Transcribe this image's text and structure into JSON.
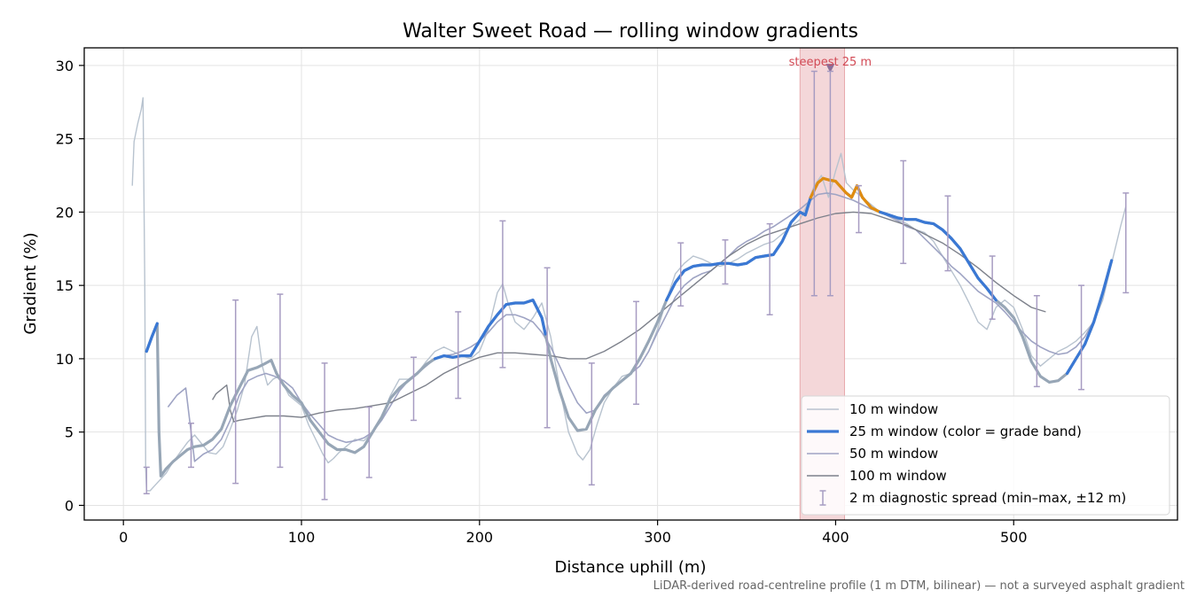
{
  "chart_data": {
    "type": "line",
    "title": "Walter Sweet Road — rolling window gradients",
    "xlabel": "Distance uphill (m)",
    "ylabel": "Gradient (%)",
    "xlim": [
      -22,
      592
    ],
    "ylim": [
      -1.0,
      31.2
    ],
    "x_ticks": [
      0,
      100,
      200,
      300,
      400,
      500
    ],
    "y_ticks": [
      0,
      5,
      10,
      15,
      20,
      25,
      30
    ],
    "grid": true,
    "legend_position": "lower right",
    "footnote": "LiDAR-derived road-centreline profile (1 m DTM, bilinear) — not a surveyed asphalt gradient",
    "highlight": {
      "x_start": 380,
      "x_end": 405,
      "label": "steepest 25 m",
      "marker_x": 397,
      "marker_y": 29.8
    },
    "colors": {
      "w10": "#b8c3cf",
      "w25_base": "#97a6b6",
      "w25_blue": "#3a78d4",
      "w25_orange": "#e08c10",
      "w50": "#9fa4c4",
      "w100": "#7d818b",
      "spread": "#a79cc2",
      "highlight_fill": "#f4d7d9",
      "highlight_edge": "#e7a9ad",
      "annotation": "#d24a55",
      "marker": "#8a6f99"
    },
    "legend": [
      {
        "key": "w10",
        "label": "10 m window"
      },
      {
        "key": "w25",
        "label": "25 m window (color = grade band)"
      },
      {
        "key": "w50",
        "label": "50 m window"
      },
      {
        "key": "w100",
        "label": "100 m window"
      },
      {
        "key": "spread",
        "label": "2 m diagnostic spread (min–max, ±12 m)"
      }
    ],
    "series": [
      {
        "name": "10 m window",
        "key": "w10",
        "x": [
          5,
          6,
          8,
          10,
          11,
          12,
          12.5,
          13,
          15,
          18,
          21,
          24,
          27,
          30,
          33,
          36,
          40,
          44,
          48,
          52,
          56,
          60,
          64,
          68,
          72,
          75,
          78,
          81,
          84,
          87,
          90,
          93,
          96,
          100,
          104,
          108,
          112,
          115,
          118,
          121,
          125,
          130,
          135,
          140,
          145,
          150,
          155,
          160,
          165,
          170,
          175,
          180,
          185,
          190,
          195,
          200,
          205,
          210,
          213,
          216,
          220,
          225,
          230,
          235,
          240,
          245,
          250,
          255,
          258,
          262,
          266,
          270,
          275,
          280,
          285,
          290,
          295,
          300,
          305,
          310,
          315,
          320,
          325,
          330,
          335,
          340,
          345,
          350,
          355,
          360,
          365,
          370,
          375,
          380,
          384,
          388,
          392,
          396,
          400,
          403,
          406,
          410,
          415,
          420,
          425,
          430,
          435,
          440,
          445,
          450,
          455,
          460,
          465,
          470,
          475,
          480,
          485,
          490,
          495,
          500,
          505,
          510,
          515,
          520,
          525,
          530,
          535,
          540,
          545,
          550,
          555,
          560,
          563
        ],
        "y": [
          21.8,
          24.8,
          26.0,
          27.0,
          27.8,
          15.0,
          2.5,
          1.0,
          1.0,
          1.4,
          1.8,
          2.2,
          2.8,
          3.3,
          3.8,
          4.3,
          4.8,
          4.2,
          3.6,
          3.5,
          4.0,
          5.2,
          6.5,
          8.2,
          11.5,
          12.2,
          9.5,
          8.2,
          8.6,
          8.8,
          8.2,
          7.5,
          7.2,
          6.8,
          5.5,
          4.5,
          3.5,
          2.9,
          3.2,
          3.6,
          4.0,
          4.5,
          4.4,
          5.0,
          6.0,
          7.5,
          8.6,
          8.6,
          9.0,
          9.8,
          10.5,
          10.8,
          10.5,
          10.2,
          10.0,
          10.5,
          12.0,
          14.5,
          15.1,
          13.8,
          12.5,
          12.0,
          12.8,
          13.8,
          11.5,
          8.0,
          5.0,
          3.5,
          3.1,
          3.8,
          5.5,
          7.0,
          8.0,
          8.8,
          9.0,
          9.5,
          10.5,
          12.0,
          14.0,
          15.8,
          16.5,
          17.0,
          16.8,
          16.5,
          16.3,
          16.5,
          16.8,
          17.2,
          17.5,
          17.8,
          18.0,
          18.5,
          19.0,
          19.5,
          20.5,
          21.8,
          22.5,
          21.0,
          22.8,
          24.0,
          22.0,
          21.5,
          21.0,
          20.5,
          20.0,
          19.8,
          19.5,
          19.2,
          18.8,
          18.6,
          18.0,
          17.0,
          16.0,
          15.0,
          13.8,
          12.5,
          12.0,
          13.5,
          14.0,
          13.5,
          12.0,
          10.2,
          9.5,
          10.0,
          10.5,
          10.8,
          11.2,
          11.8,
          12.5,
          14.0,
          16.5,
          19.0,
          20.4
        ]
      },
      {
        "name": "25 m window (color = grade band)",
        "key": "w25",
        "x": [
          13,
          16,
          19,
          20,
          21,
          24,
          28,
          32,
          36,
          40,
          45,
          50,
          55,
          60,
          65,
          70,
          75,
          80,
          83,
          86,
          90,
          95,
          100,
          105,
          110,
          115,
          120,
          125,
          130,
          135,
          140,
          145,
          150,
          155,
          160,
          165,
          170,
          175,
          180,
          185,
          190,
          195,
          200,
          205,
          210,
          215,
          220,
          225,
          230,
          235,
          240,
          245,
          250,
          255,
          260,
          265,
          270,
          275,
          280,
          285,
          290,
          295,
          300,
          305,
          310,
          315,
          320,
          325,
          330,
          335,
          340,
          345,
          350,
          355,
          360,
          365,
          370,
          375,
          380,
          383,
          386,
          390,
          393,
          396,
          400,
          403,
          406,
          409,
          412,
          415,
          420,
          425,
          430,
          435,
          440,
          445,
          450,
          455,
          460,
          465,
          470,
          475,
          480,
          485,
          490,
          495,
          500,
          505,
          510,
          515,
          520,
          525,
          530,
          535,
          540,
          545,
          550,
          555
        ],
        "y": [
          10.5,
          11.5,
          12.4,
          5.0,
          2.0,
          2.5,
          3.0,
          3.4,
          3.8,
          4.0,
          4.1,
          4.5,
          5.2,
          6.8,
          8.0,
          9.2,
          9.4,
          9.7,
          9.9,
          9.0,
          8.2,
          7.5,
          7.0,
          5.8,
          5.0,
          4.2,
          3.8,
          3.8,
          3.6,
          4.0,
          5.0,
          6.0,
          7.3,
          8.0,
          8.5,
          9.0,
          9.6,
          10.0,
          10.2,
          10.1,
          10.2,
          10.2,
          11.2,
          12.2,
          13.0,
          13.7,
          13.8,
          13.8,
          14.0,
          12.8,
          10.0,
          7.8,
          6.0,
          5.1,
          5.2,
          6.5,
          7.4,
          8.0,
          8.5,
          9.0,
          10.0,
          11.2,
          12.5,
          14.0,
          15.2,
          16.0,
          16.3,
          16.4,
          16.4,
          16.5,
          16.5,
          16.4,
          16.5,
          16.9,
          17.0,
          17.1,
          18.0,
          19.3,
          20.0,
          19.8,
          21.0,
          22.0,
          22.3,
          22.2,
          22.1,
          21.7,
          21.3,
          21.0,
          21.8,
          21.0,
          20.3,
          20.0,
          19.8,
          19.6,
          19.5,
          19.5,
          19.3,
          19.2,
          18.8,
          18.2,
          17.5,
          16.5,
          15.5,
          14.8,
          14.0,
          13.5,
          12.8,
          11.5,
          9.8,
          8.8,
          8.4,
          8.5,
          9.0,
          10.0,
          11.0,
          12.5,
          14.5,
          16.7
        ],
        "segments": [
          {
            "band": "blue",
            "x_start": 12,
            "x_end": 19
          },
          {
            "band": "blue",
            "x_start": 175,
            "x_end": 200
          },
          {
            "band": "blue",
            "x_start": 200,
            "x_end": 237
          },
          {
            "band": "blue",
            "x_start": 305,
            "x_end": 386
          },
          {
            "band": "orange",
            "x_start": 386,
            "x_end": 425
          },
          {
            "band": "blue",
            "x_start": 425,
            "x_end": 490
          },
          {
            "band": "blue",
            "x_start": 530,
            "x_end": 555
          }
        ]
      },
      {
        "name": "50 m window",
        "key": "w50",
        "x": [
          25,
          30,
          35,
          40,
          45,
          50,
          55,
          60,
          65,
          70,
          75,
          80,
          85,
          90,
          95,
          100,
          105,
          110,
          115,
          120,
          125,
          130,
          135,
          140,
          145,
          150,
          155,
          160,
          165,
          170,
          175,
          180,
          185,
          190,
          195,
          200,
          205,
          210,
          215,
          220,
          225,
          230,
          235,
          240,
          245,
          250,
          255,
          260,
          265,
          270,
          275,
          280,
          285,
          290,
          295,
          300,
          305,
          310,
          315,
          320,
          325,
          330,
          335,
          340,
          345,
          350,
          355,
          360,
          365,
          370,
          375,
          380,
          385,
          390,
          395,
          400,
          405,
          410,
          415,
          420,
          425,
          430,
          435,
          440,
          445,
          450,
          455,
          460,
          465,
          470,
          475,
          480,
          485,
          490,
          495,
          500,
          505,
          510,
          515,
          520,
          525,
          530,
          535,
          540,
          545
        ],
        "y": [
          6.7,
          7.5,
          8.0,
          3.0,
          3.5,
          3.8,
          4.5,
          5.8,
          7.5,
          8.5,
          8.8,
          9.0,
          8.8,
          8.5,
          8.0,
          7.0,
          6.2,
          5.5,
          4.8,
          4.5,
          4.3,
          4.4,
          4.6,
          5.0,
          5.8,
          6.8,
          7.8,
          8.5,
          9.0,
          9.5,
          10.0,
          10.2,
          10.3,
          10.5,
          10.8,
          11.2,
          11.8,
          12.5,
          13.0,
          13.0,
          12.8,
          12.5,
          11.8,
          10.8,
          9.5,
          8.2,
          7.0,
          6.3,
          6.5,
          7.5,
          8.0,
          8.5,
          9.0,
          9.5,
          10.5,
          11.8,
          13.0,
          14.2,
          15.0,
          15.5,
          15.8,
          16.0,
          16.5,
          17.0,
          17.6,
          18.0,
          18.3,
          18.7,
          19.0,
          19.4,
          19.8,
          20.2,
          20.7,
          21.2,
          21.3,
          21.2,
          21.0,
          20.8,
          20.5,
          20.2,
          20.0,
          19.7,
          19.4,
          19.0,
          18.8,
          18.2,
          17.6,
          17.0,
          16.3,
          15.8,
          15.2,
          14.6,
          14.2,
          13.8,
          13.2,
          12.5,
          11.8,
          11.2,
          10.8,
          10.5,
          10.3,
          10.4,
          10.8,
          11.5,
          12.6
        ]
      },
      {
        "name": "100 m window",
        "key": "w100",
        "x": [
          50,
          52,
          55,
          58,
          60,
          62,
          65,
          70,
          80,
          90,
          100,
          110,
          120,
          130,
          140,
          150,
          160,
          170,
          180,
          190,
          200,
          210,
          220,
          230,
          240,
          250,
          260,
          270,
          280,
          290,
          300,
          310,
          320,
          330,
          340,
          350,
          360,
          370,
          380,
          390,
          400,
          410,
          420,
          430,
          440,
          450,
          460,
          470,
          480,
          490,
          500,
          510,
          518
        ],
        "y": [
          7.2,
          7.6,
          7.9,
          8.2,
          6.5,
          5.7,
          5.8,
          5.9,
          6.1,
          6.1,
          6.0,
          6.3,
          6.5,
          6.6,
          6.8,
          7.0,
          7.6,
          8.2,
          9.0,
          9.6,
          10.1,
          10.4,
          10.4,
          10.3,
          10.2,
          10.0,
          10.0,
          10.5,
          11.2,
          12.0,
          13.0,
          14.0,
          15.0,
          16.0,
          17.0,
          17.8,
          18.4,
          18.8,
          19.2,
          19.6,
          19.9,
          20.0,
          19.9,
          19.5,
          19.1,
          18.5,
          17.9,
          17.1,
          16.2,
          15.2,
          14.3,
          13.5,
          13.2
        ]
      }
    ],
    "spread_bars": {
      "name": "2 m diagnostic spread (min–max, ±12 m)",
      "x": [
        13,
        38,
        63,
        88,
        113,
        138,
        163,
        188,
        213,
        238,
        263,
        288,
        313,
        338,
        363,
        388,
        397,
        413,
        438,
        463,
        488,
        513,
        538,
        563
      ],
      "ymin": [
        0.8,
        2.6,
        1.5,
        2.6,
        0.4,
        1.9,
        5.8,
        7.3,
        9.4,
        5.3,
        1.4,
        6.9,
        13.6,
        15.1,
        13.0,
        14.3,
        14.3,
        18.6,
        16.5,
        16.0,
        12.7,
        8.1,
        7.9,
        14.5
      ],
      "ymax": [
        2.6,
        5.6,
        14.0,
        14.4,
        9.7,
        6.7,
        10.1,
        13.2,
        19.4,
        16.2,
        9.7,
        13.9,
        17.9,
        18.1,
        19.2,
        29.6,
        29.6,
        21.8,
        23.5,
        21.1,
        17.0,
        14.3,
        15.0,
        21.3
      ]
    }
  }
}
